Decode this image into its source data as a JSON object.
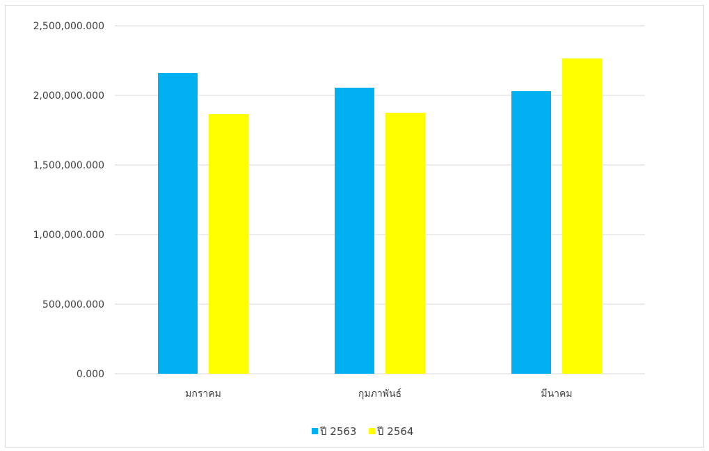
{
  "chart_data": {
    "type": "bar",
    "title": "",
    "xlabel": "",
    "ylabel": "",
    "categories": [
      "มกราคม",
      "กุมภาพันธ์",
      "มีนาคม"
    ],
    "series": [
      {
        "name": "ปี 2563",
        "color": "#00b0f0",
        "values": [
          2160000,
          2055000,
          2030000
        ]
      },
      {
        "name": "ปี 2564",
        "color": "#ffff00",
        "values": [
          1865000,
          1875000,
          2265000
        ]
      }
    ],
    "ylim": [
      0,
      2500000
    ],
    "yticks": [
      0,
      500000,
      1000000,
      1500000,
      2000000,
      2500000
    ],
    "ytick_labels": [
      "0.000",
      "500,000.000",
      "1,000,000.000",
      "1,500,000.000",
      "2,000,000.000",
      "2,500,000.000"
    ],
    "grid": true,
    "gridline_color": "#d9d9d9",
    "legend_position": "bottom"
  }
}
